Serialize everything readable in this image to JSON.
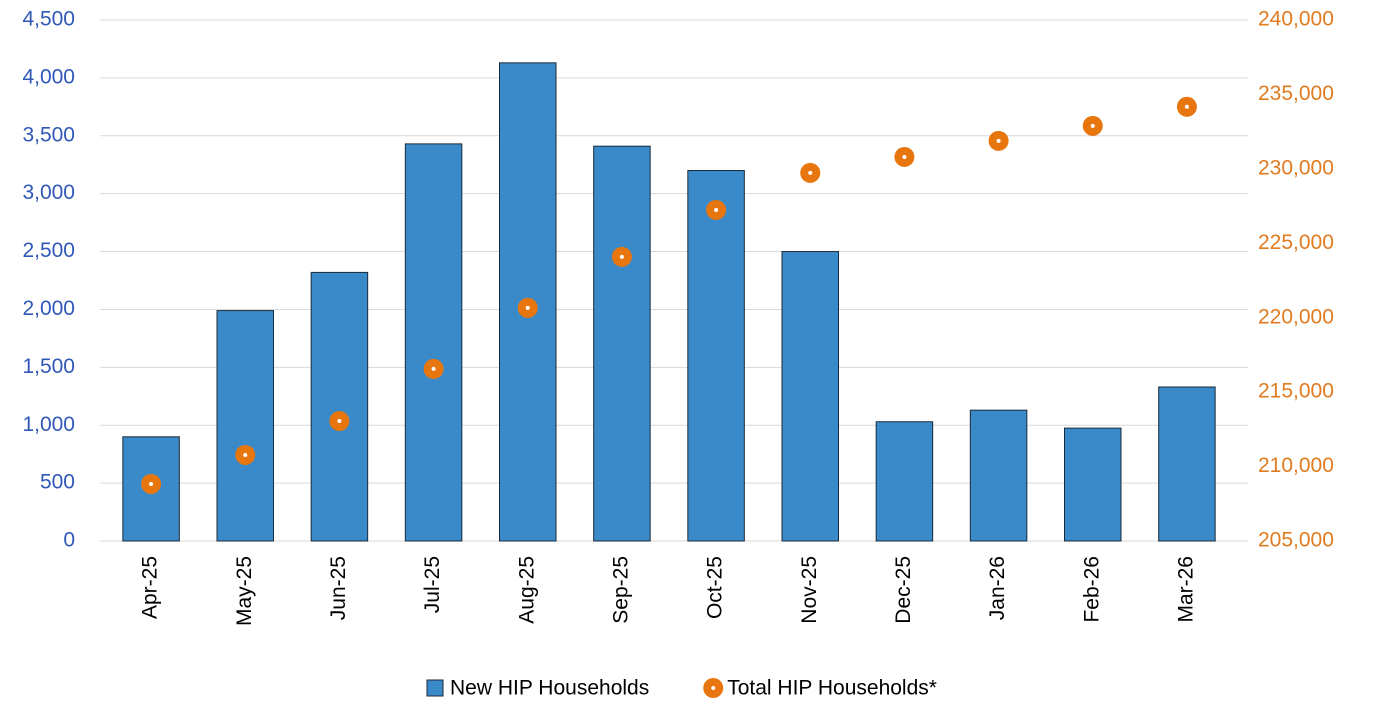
{
  "chart_data": {
    "type": "bar",
    "categories": [
      "Apr-25",
      "May-25",
      "Jun-25",
      "Jul-25",
      "Aug-25",
      "Sep-25",
      "Oct-25",
      "Nov-25",
      "Dec-25",
      "Jan-26",
      "Feb-26",
      "Mar-26"
    ],
    "series": [
      {
        "name": "New HIP Households",
        "type": "bar",
        "color": "#3a8ac9",
        "axis": "y",
        "values": [
          900,
          1990,
          2320,
          3430,
          4130,
          3410,
          3200,
          2500,
          1030,
          1130,
          975,
          1330
        ]
      },
      {
        "name": "Total HIP Households*",
        "type": "scatter",
        "color": "#e8760e",
        "axis": "y2",
        "values": [
          208830,
          210780,
          213060,
          216560,
          220660,
          224090,
          227240,
          229730,
          230800,
          231880,
          232890,
          234170
        ]
      }
    ],
    "ylim": [
      0,
      4500
    ],
    "yticks": [
      0,
      500,
      {
        "value": 1000,
        "label": "1,000"
      },
      {
        "value": 1500,
        "label": "1,500"
      },
      {
        "value": 2000,
        "label": "2,000"
      },
      {
        "value": 2500,
        "label": "2,500"
      },
      {
        "value": 3000,
        "label": "3,000"
      },
      {
        "value": 3500,
        "label": "3,500"
      },
      {
        "value": 4000,
        "label": "4,000"
      },
      {
        "value": 4500,
        "label": "4,500"
      }
    ],
    "y2lim": [
      205000,
      240000
    ],
    "y2ticks": [
      {
        "value": 205000,
        "label": "205,000"
      },
      {
        "value": 210000,
        "label": "210,000"
      },
      {
        "value": 215000,
        "label": "215,000"
      },
      {
        "value": 220000,
        "label": "220,000"
      },
      {
        "value": 225000,
        "label": "225,000"
      },
      {
        "value": 230000,
        "label": "230,000"
      },
      {
        "value": 235000,
        "label": "235,000"
      },
      {
        "value": 240000,
        "label": "240,000"
      }
    ],
    "yaxis_color": "#3058b8",
    "y2axis_color": "#e07b1f",
    "grid": true,
    "legend": "bottom"
  }
}
